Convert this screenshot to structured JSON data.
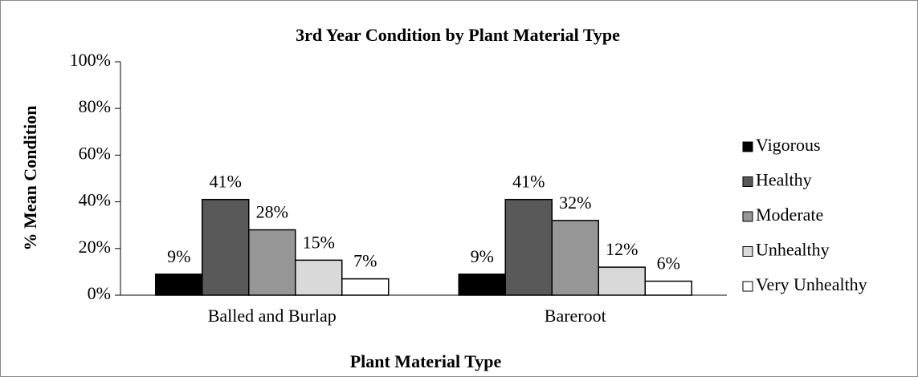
{
  "chart_data": {
    "type": "bar",
    "title": "3rd Year Condition by Plant Material Type",
    "x_label": "Plant Material Type",
    "y_label": "% Mean Condition",
    "categories": [
      "Balled and Burlap",
      "Bareroot"
    ],
    "series": [
      {
        "name": "Vigorous",
        "color": "#000000",
        "values": [
          9,
          9
        ],
        "value_labels": [
          "9%",
          "9%"
        ]
      },
      {
        "name": "Healthy",
        "color": "#595959",
        "values": [
          41,
          41
        ],
        "value_labels": [
          "41%",
          "41%"
        ]
      },
      {
        "name": "Moderate",
        "color": "#969696",
        "values": [
          28,
          32
        ],
        "value_labels": [
          "28%",
          "32%"
        ]
      },
      {
        "name": "Unhealthy",
        "color": "#d9d9d9",
        "values": [
          15,
          12
        ],
        "value_labels": [
          "15%",
          "12%"
        ]
      },
      {
        "name": "Very Unhealthy",
        "color": "#ffffff",
        "values": [
          7,
          6
        ],
        "value_labels": [
          "7%",
          "6%"
        ]
      }
    ],
    "ylim": [
      0,
      100
    ],
    "yticks": [
      {
        "value": 0,
        "label": "0%"
      },
      {
        "value": 20,
        "label": "20%"
      },
      {
        "value": 40,
        "label": "40%"
      },
      {
        "value": 60,
        "label": "60%"
      },
      {
        "value": 80,
        "label": "80%"
      },
      {
        "value": 100,
        "label": "100%"
      }
    ],
    "grid": false,
    "legend": "right"
  }
}
